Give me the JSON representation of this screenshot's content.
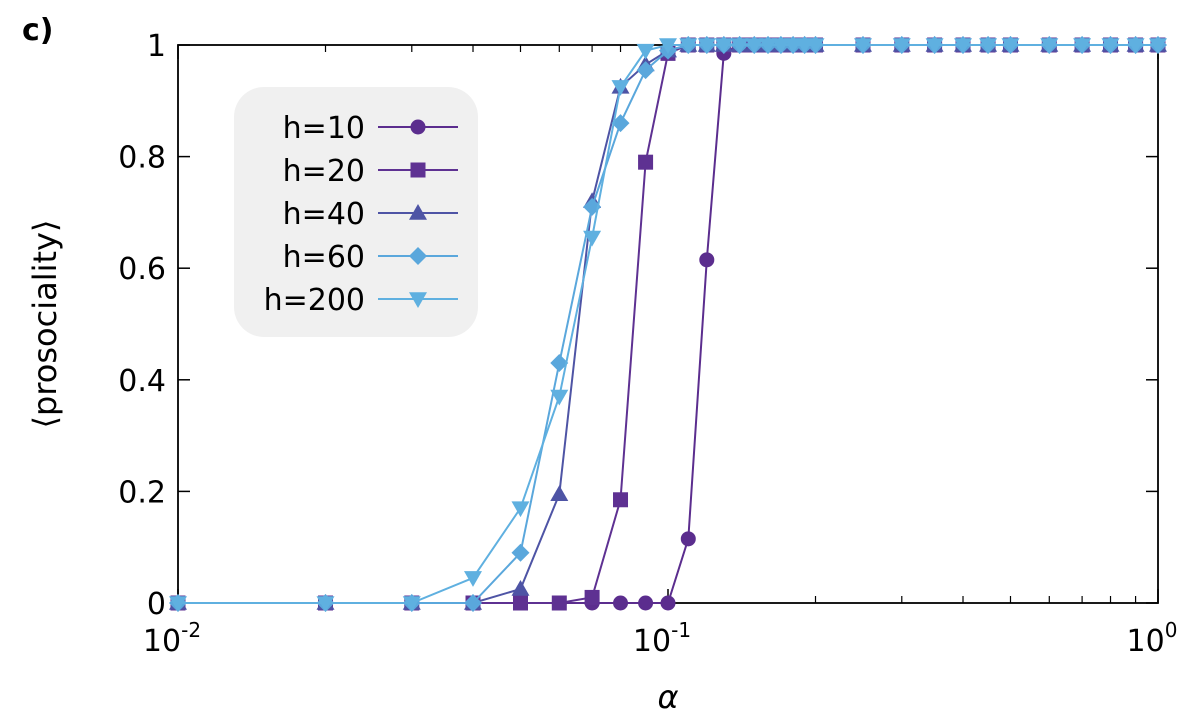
{
  "panel_label": "c)",
  "chart_data": {
    "type": "line",
    "xlabel": "α",
    "ylabel": "⟨prosociality⟩",
    "xscale": "log",
    "xlim": [
      0.01,
      1
    ],
    "ylim": [
      0,
      1
    ],
    "x_ticks": [
      {
        "value": 0.01,
        "base": "10",
        "exp": "-2"
      },
      {
        "value": 0.1,
        "base": "10",
        "exp": "-1"
      },
      {
        "value": 1,
        "base": "10",
        "exp": "0"
      }
    ],
    "y_ticks": [
      {
        "value": 0,
        "label": "0"
      },
      {
        "value": 0.2,
        "label": "0.2"
      },
      {
        "value": 0.4,
        "label": "0.4"
      },
      {
        "value": 0.6,
        "label": "0.6"
      },
      {
        "value": 0.8,
        "label": "0.8"
      },
      {
        "value": 1,
        "label": "1"
      }
    ],
    "grid": false,
    "legend_position": "top-left",
    "series": [
      {
        "name": "h=10",
        "marker": "circle",
        "color": "#5b2d8e",
        "x": [
          0.01,
          0.02,
          0.03,
          0.04,
          0.05,
          0.06,
          0.07,
          0.08,
          0.09,
          0.1,
          0.11,
          0.12,
          0.13,
          0.14,
          0.15,
          0.16,
          0.17,
          0.18,
          0.19,
          0.2,
          0.25,
          0.3,
          0.35,
          0.4,
          0.45,
          0.5,
          0.6,
          0.7,
          0.8,
          0.9,
          1.0
        ],
        "y": [
          0,
          0,
          0,
          0,
          0,
          0,
          0,
          0,
          0,
          0,
          0.115,
          0.615,
          0.985,
          1,
          1,
          1,
          1,
          1,
          1,
          1,
          1,
          1,
          1,
          1,
          1,
          1,
          1,
          1,
          1,
          1,
          1
        ]
      },
      {
        "name": "h=20",
        "marker": "square",
        "color": "#5e3192",
        "x": [
          0.01,
          0.02,
          0.03,
          0.04,
          0.05,
          0.06,
          0.07,
          0.08,
          0.09,
          0.1,
          0.11,
          0.12,
          0.13,
          0.14,
          0.15,
          0.16,
          0.17,
          0.18,
          0.19,
          0.2,
          0.25,
          0.3,
          0.35,
          0.4,
          0.45,
          0.5,
          0.6,
          0.7,
          0.8,
          0.9,
          1.0
        ],
        "y": [
          0,
          0,
          0,
          0,
          0,
          0,
          0.01,
          0.185,
          0.79,
          0.985,
          1,
          1,
          1,
          1,
          1,
          1,
          1,
          1,
          1,
          1,
          1,
          1,
          1,
          1,
          1,
          1,
          1,
          1,
          1,
          1,
          1
        ]
      },
      {
        "name": "h=40",
        "marker": "triangle-up",
        "color": "#4e54a5",
        "x": [
          0.01,
          0.02,
          0.03,
          0.04,
          0.05,
          0.06,
          0.07,
          0.08,
          0.09,
          0.1,
          0.11,
          0.12,
          0.13,
          0.14,
          0.15,
          0.16,
          0.17,
          0.18,
          0.19,
          0.2,
          0.25,
          0.3,
          0.35,
          0.4,
          0.45,
          0.5,
          0.6,
          0.7,
          0.8,
          0.9,
          1.0
        ],
        "y": [
          0,
          0,
          0,
          0,
          0.025,
          0.195,
          0.72,
          0.925,
          0.965,
          0.99,
          1,
          1,
          1,
          1,
          1,
          1,
          1,
          1,
          1,
          1,
          1,
          1,
          1,
          1,
          1,
          1,
          1,
          1,
          1,
          1,
          1
        ]
      },
      {
        "name": "h=60",
        "marker": "diamond",
        "color": "#5aa7dc",
        "x": [
          0.01,
          0.02,
          0.03,
          0.04,
          0.05,
          0.06,
          0.07,
          0.08,
          0.09,
          0.1,
          0.11,
          0.12,
          0.13,
          0.14,
          0.15,
          0.16,
          0.17,
          0.18,
          0.19,
          0.2,
          0.25,
          0.3,
          0.35,
          0.4,
          0.45,
          0.5,
          0.6,
          0.7,
          0.8,
          0.9,
          1.0
        ],
        "y": [
          0,
          0,
          0,
          0,
          0.09,
          0.43,
          0.71,
          0.86,
          0.955,
          0.99,
          1,
          1,
          1,
          1,
          1,
          1,
          1,
          1,
          1,
          1,
          1,
          1,
          1,
          1,
          1,
          1,
          1,
          1,
          1,
          1,
          1
        ]
      },
      {
        "name": "h=200",
        "marker": "triangle-down",
        "color": "#5fb0e0",
        "x": [
          0.01,
          0.02,
          0.03,
          0.04,
          0.05,
          0.06,
          0.07,
          0.08,
          0.09,
          0.1,
          0.11,
          0.12,
          0.13,
          0.14,
          0.15,
          0.16,
          0.17,
          0.18,
          0.19,
          0.2,
          0.25,
          0.3,
          0.35,
          0.4,
          0.45,
          0.5,
          0.6,
          0.7,
          0.8,
          0.9,
          1.0
        ],
        "y": [
          0,
          0,
          0,
          0.045,
          0.17,
          0.37,
          0.655,
          0.925,
          0.99,
          1,
          1,
          1,
          1,
          1,
          1,
          1,
          1,
          1,
          1,
          1,
          1,
          1,
          1,
          1,
          1,
          1,
          1,
          1,
          1,
          1,
          1
        ]
      }
    ]
  }
}
